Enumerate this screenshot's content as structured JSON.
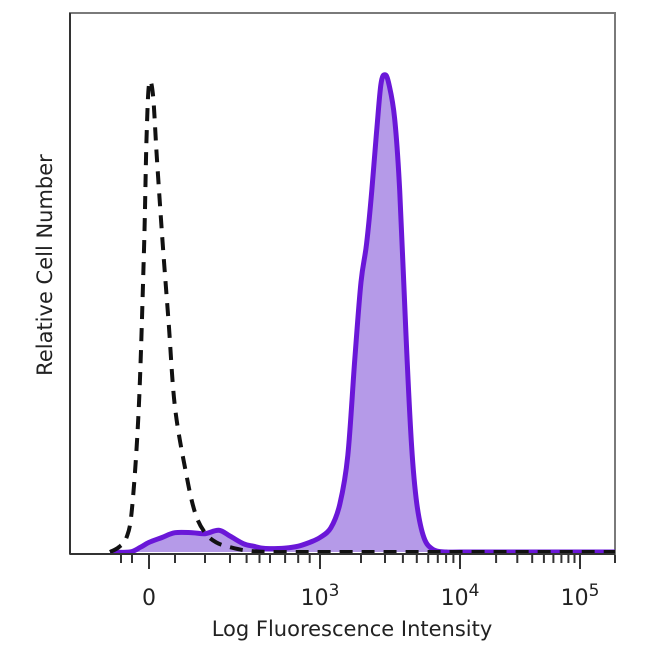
{
  "chart_data": {
    "type": "area",
    "xlabel": "Log Fluorescence Intensity",
    "ylabel": "Relative Cell Number",
    "x_scale": "biexponential",
    "xlim": [
      -300,
      200000
    ],
    "ylim": [
      0,
      1
    ],
    "grid": false,
    "legend": "none",
    "x_ticks": [
      {
        "value": 0,
        "base": "0",
        "exp": ""
      },
      {
        "value": 1000,
        "base": "10",
        "exp": "3"
      },
      {
        "value": 10000,
        "base": "10",
        "exp": "4"
      },
      {
        "value": 100000,
        "base": "10",
        "exp": "5"
      }
    ],
    "series": [
      {
        "style": "filled",
        "stroke": "#6a17d8",
        "fill": "#b59ae8",
        "x": [
          -300,
          -120,
          -50,
          0,
          50,
          100,
          150,
          200,
          250,
          300,
          380,
          450,
          520,
          600,
          700,
          800,
          900,
          1000,
          1200,
          1400,
          1600,
          1800,
          2000,
          2200,
          2400,
          2600,
          2800,
          3000,
          3200,
          3500,
          3800,
          4200,
          4600,
          5000,
          5600,
          6500,
          8000,
          10000,
          20000,
          50000,
          100000,
          200000
        ],
        "values": [
          0,
          0,
          0.01,
          0.02,
          0.03,
          0.04,
          0.04,
          0.038,
          0.045,
          0.033,
          0.017,
          0.012,
          0.008,
          0.007,
          0.008,
          0.012,
          0.02,
          0.03,
          0.05,
          0.1,
          0.2,
          0.4,
          0.56,
          0.64,
          0.75,
          0.87,
          0.97,
          0.99,
          0.97,
          0.9,
          0.75,
          0.45,
          0.22,
          0.1,
          0.03,
          0.005,
          0,
          0,
          0,
          0,
          0,
          0
        ]
      },
      {
        "style": "dashed",
        "stroke": "#111111",
        "x": [
          -300,
          -220,
          -150,
          -100,
          -60,
          -30,
          -15,
          0,
          15,
          30,
          50,
          75,
          100,
          130,
          160,
          200,
          240,
          300,
          400,
          600,
          800,
          1000,
          2000,
          10000,
          200000
        ],
        "values": [
          0,
          0.01,
          0.03,
          0.09,
          0.3,
          0.62,
          0.85,
          0.97,
          0.95,
          0.82,
          0.66,
          0.48,
          0.3,
          0.16,
          0.08,
          0.04,
          0.02,
          0.01,
          0.003,
          0,
          0,
          0,
          0,
          0,
          0
        ]
      }
    ]
  }
}
